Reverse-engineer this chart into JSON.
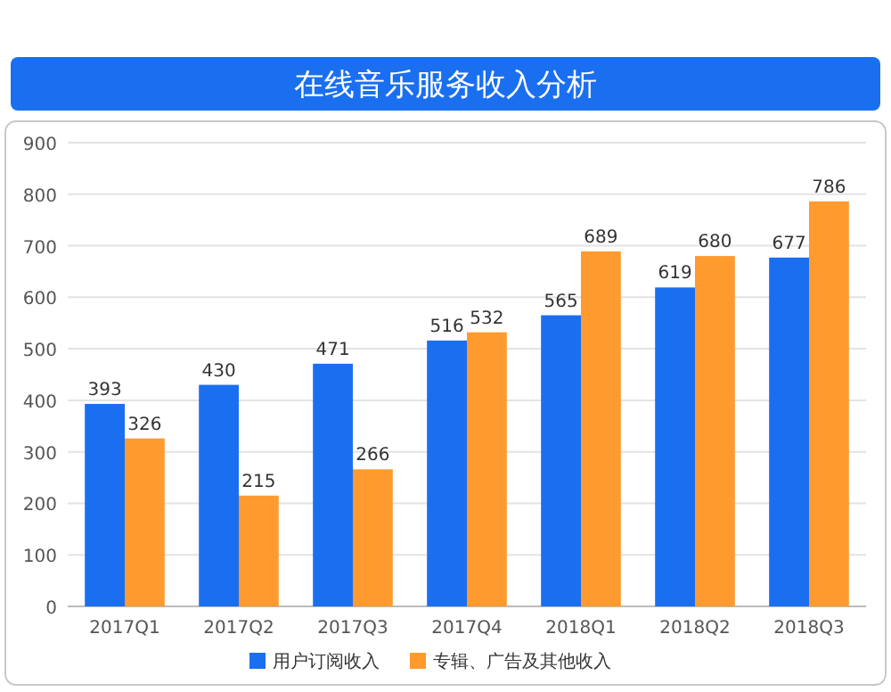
{
  "chart_data": {
    "type": "bar",
    "title": "在线音乐服务收入分析",
    "categories": [
      "2017Q1",
      "2017Q2",
      "2017Q3",
      "2017Q4",
      "2018Q1",
      "2018Q2",
      "2018Q3"
    ],
    "series": [
      {
        "name": "用户订阅收入",
        "color": "#1a6ff0",
        "values": [
          393,
          430,
          471,
          516,
          565,
          619,
          677
        ]
      },
      {
        "name": "专辑、广告及其他收入",
        "color": "#ff9a2e",
        "values": [
          326,
          215,
          266,
          532,
          689,
          680,
          786
        ]
      }
    ],
    "ylim": [
      0,
      900
    ],
    "yticks": [
      0,
      100,
      200,
      300,
      400,
      500,
      600,
      700,
      800,
      900
    ],
    "grid": "y",
    "legend": "bottom",
    "data_labels": true
  }
}
